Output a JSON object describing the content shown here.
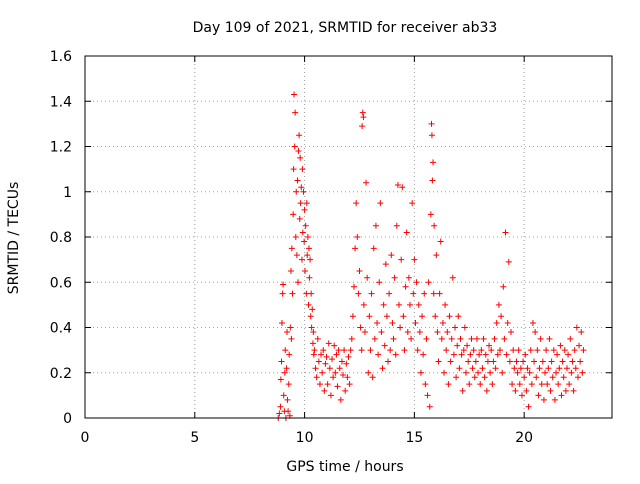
{
  "chart_data": {
    "type": "scatter",
    "title": "Day 109 of 2021, SRMTID for receiver ab33",
    "xlabel": "GPS time / hours",
    "ylabel": "SRMTID / TECUs",
    "xlim": [
      0,
      24
    ],
    "ylim": [
      0,
      1.6
    ],
    "xticks": [
      0,
      5,
      10,
      15,
      20
    ],
    "xtick_labels": [
      "0",
      "5",
      "10",
      "15",
      "20"
    ],
    "yticks": [
      0,
      0.2,
      0.4,
      0.6,
      0.8,
      1,
      1.2,
      1.4,
      1.6
    ],
    "ytick_labels": [
      "0",
      "0.2",
      "0.4",
      "0.6",
      "0.8",
      "1",
      "1.2",
      "1.4",
      "1.6"
    ],
    "grid": true,
    "marker": "+",
    "color": "#ff0000",
    "series": [
      {
        "name": "SRMTID",
        "points": [
          [
            8.8,
            0.0
          ],
          [
            8.85,
            0.02
          ],
          [
            8.9,
            0.05
          ],
          [
            8.92,
            0.17
          ],
          [
            8.95,
            0.25
          ],
          [
            8.97,
            0.42
          ],
          [
            9.0,
            0.55
          ],
          [
            9.02,
            0.59
          ],
          [
            9.05,
            0.1
          ],
          [
            9.08,
            0.03
          ],
          [
            9.1,
            0.2
          ],
          [
            9.12,
            0.3
          ],
          [
            9.15,
            0.0
          ],
          [
            9.18,
            0.22
          ],
          [
            9.2,
            0.38
          ],
          [
            9.22,
            0.08
          ],
          [
            9.25,
            0.03
          ],
          [
            9.28,
            0.15
          ],
          [
            9.3,
            0.28
          ],
          [
            9.33,
            0.01
          ],
          [
            9.35,
            0.4
          ],
          [
            9.38,
            0.65
          ],
          [
            9.4,
            0.35
          ],
          [
            9.42,
            0.75
          ],
          [
            9.45,
            0.55
          ],
          [
            9.48,
            0.9
          ],
          [
            9.5,
            1.1
          ],
          [
            9.52,
            1.43
          ],
          [
            9.55,
            1.2
          ],
          [
            9.57,
            1.35
          ],
          [
            9.6,
            0.8
          ],
          [
            9.62,
            1.0
          ],
          [
            9.65,
            0.72
          ],
          [
            9.68,
            1.05
          ],
          [
            9.7,
            0.6
          ],
          [
            9.72,
            1.18
          ],
          [
            9.75,
            1.25
          ],
          [
            9.78,
            0.88
          ],
          [
            9.8,
            1.15
          ],
          [
            9.82,
            0.95
          ],
          [
            9.85,
            1.02
          ],
          [
            9.88,
            0.7
          ],
          [
            9.9,
            1.1
          ],
          [
            9.92,
            0.82
          ],
          [
            9.95,
            1.0
          ],
          [
            9.98,
            0.78
          ],
          [
            10.0,
            0.92
          ],
          [
            10.02,
            0.65
          ],
          [
            10.05,
            0.85
          ],
          [
            10.08,
            0.55
          ],
          [
            10.1,
            0.95
          ],
          [
            10.12,
            0.72
          ],
          [
            10.15,
            0.8
          ],
          [
            10.18,
            0.5
          ],
          [
            10.2,
            0.75
          ],
          [
            10.22,
            0.62
          ],
          [
            10.25,
            0.7
          ],
          [
            10.28,
            0.45
          ],
          [
            10.3,
            0.55
          ],
          [
            10.32,
            0.4
          ],
          [
            10.35,
            0.48
          ],
          [
            10.38,
            0.33
          ],
          [
            10.4,
            0.38
          ],
          [
            10.42,
            0.28
          ],
          [
            10.45,
            0.3
          ],
          [
            10.5,
            0.22
          ],
          [
            10.55,
            0.18
          ],
          [
            10.6,
            0.35
          ],
          [
            10.65,
            0.25
          ],
          [
            10.7,
            0.15
          ],
          [
            10.75,
            0.28
          ],
          [
            10.8,
            0.2
          ],
          [
            10.85,
            0.3
          ],
          [
            10.9,
            0.12
          ],
          [
            10.95,
            0.24
          ],
          [
            11.0,
            0.27
          ],
          [
            11.05,
            0.15
          ],
          [
            11.1,
            0.33
          ],
          [
            11.15,
            0.22
          ],
          [
            11.2,
            0.1
          ],
          [
            11.25,
            0.26
          ],
          [
            11.3,
            0.18
          ],
          [
            11.35,
            0.32
          ],
          [
            11.4,
            0.2
          ],
          [
            11.45,
            0.28
          ],
          [
            11.5,
            0.14
          ],
          [
            11.55,
            0.3
          ],
          [
            11.6,
            0.22
          ],
          [
            11.65,
            0.08
          ],
          [
            11.7,
            0.25
          ],
          [
            11.75,
            0.19
          ],
          [
            11.8,
            0.3
          ],
          [
            11.85,
            0.12
          ],
          [
            11.9,
            0.24
          ],
          [
            11.95,
            0.18
          ],
          [
            12.0,
            0.27
          ],
          [
            12.05,
            0.15
          ],
          [
            12.1,
            0.3
          ],
          [
            12.15,
            0.35
          ],
          [
            12.2,
            0.45
          ],
          [
            12.25,
            0.58
          ],
          [
            12.3,
            0.75
          ],
          [
            12.35,
            0.95
          ],
          [
            12.4,
            0.8
          ],
          [
            12.45,
            0.55
          ],
          [
            12.5,
            0.65
          ],
          [
            12.55,
            0.4
          ],
          [
            12.6,
            0.3
          ],
          [
            12.62,
            1.29
          ],
          [
            12.65,
            1.35
          ],
          [
            12.68,
            1.33
          ],
          [
            12.7,
            0.5
          ],
          [
            12.75,
            0.38
          ],
          [
            12.8,
            1.04
          ],
          [
            12.85,
            0.62
          ],
          [
            12.9,
            0.2
          ],
          [
            12.95,
            0.45
          ],
          [
            13.0,
            0.3
          ],
          [
            13.05,
            0.55
          ],
          [
            13.1,
            0.18
          ],
          [
            13.15,
            0.75
          ],
          [
            13.2,
            0.35
          ],
          [
            13.25,
            0.85
          ],
          [
            13.3,
            0.42
          ],
          [
            13.35,
            0.28
          ],
          [
            13.4,
            0.6
          ],
          [
            13.45,
            0.95
          ],
          [
            13.5,
            0.38
          ],
          [
            13.55,
            0.22
          ],
          [
            13.6,
            0.5
          ],
          [
            13.65,
            0.32
          ],
          [
            13.7,
            0.68
          ],
          [
            13.75,
            0.45
          ],
          [
            13.8,
            0.25
          ],
          [
            13.85,
            0.55
          ],
          [
            13.9,
            0.3
          ],
          [
            13.95,
            0.72
          ],
          [
            14.0,
            0.42
          ],
          [
            14.05,
            0.35
          ],
          [
            14.1,
            0.62
          ],
          [
            14.15,
            0.28
          ],
          [
            14.2,
            0.85
          ],
          [
            14.25,
            1.03
          ],
          [
            14.3,
            0.5
          ],
          [
            14.35,
            0.4
          ],
          [
            14.4,
            0.7
          ],
          [
            14.45,
            1.02
          ],
          [
            14.5,
            0.45
          ],
          [
            14.55,
            0.3
          ],
          [
            14.6,
            0.58
          ],
          [
            14.65,
            0.82
          ],
          [
            14.7,
            0.38
          ],
          [
            14.75,
            0.62
          ],
          [
            14.8,
            0.5
          ],
          [
            14.85,
            0.35
          ],
          [
            14.9,
            0.95
          ],
          [
            14.95,
            0.55
          ],
          [
            15.0,
            0.7
          ],
          [
            15.05,
            0.42
          ],
          [
            15.1,
            0.6
          ],
          [
            15.15,
            0.3
          ],
          [
            15.2,
            0.5
          ],
          [
            15.25,
            0.38
          ],
          [
            15.3,
            0.2
          ],
          [
            15.35,
            0.45
          ],
          [
            15.4,
            0.28
          ],
          [
            15.45,
            0.55
          ],
          [
            15.5,
            0.15
          ],
          [
            15.55,
            0.35
          ],
          [
            15.6,
            0.1
          ],
          [
            15.65,
            0.6
          ],
          [
            15.7,
            0.05
          ],
          [
            15.75,
            0.9
          ],
          [
            15.78,
            1.3
          ],
          [
            15.8,
            1.25
          ],
          [
            15.82,
            1.05
          ],
          [
            15.85,
            1.13
          ],
          [
            15.88,
            0.55
          ],
          [
            15.9,
            0.85
          ],
          [
            15.95,
            0.45
          ],
          [
            16.0,
            0.72
          ],
          [
            16.05,
            0.38
          ],
          [
            16.1,
            0.25
          ],
          [
            16.15,
            0.55
          ],
          [
            16.2,
            0.78
          ],
          [
            16.25,
            0.35
          ],
          [
            16.3,
            0.42
          ],
          [
            16.35,
            0.2
          ],
          [
            16.4,
            0.5
          ],
          [
            16.45,
            0.3
          ],
          [
            16.5,
            0.38
          ],
          [
            16.55,
            0.15
          ],
          [
            16.6,
            0.45
          ],
          [
            16.65,
            0.25
          ],
          [
            16.7,
            0.35
          ],
          [
            16.75,
            0.62
          ],
          [
            16.8,
            0.28
          ],
          [
            16.85,
            0.4
          ],
          [
            16.9,
            0.18
          ],
          [
            16.95,
            0.32
          ],
          [
            17.0,
            0.45
          ],
          [
            17.05,
            0.22
          ],
          [
            17.1,
            0.35
          ],
          [
            17.15,
            0.28
          ],
          [
            17.2,
            0.12
          ],
          [
            17.25,
            0.3
          ],
          [
            17.3,
            0.4
          ],
          [
            17.35,
            0.2
          ],
          [
            17.4,
            0.32
          ],
          [
            17.45,
            0.25
          ],
          [
            17.5,
            0.15
          ],
          [
            17.55,
            0.28
          ],
          [
            17.6,
            0.35
          ],
          [
            17.65,
            0.22
          ],
          [
            17.7,
            0.3
          ],
          [
            17.75,
            0.18
          ],
          [
            17.8,
            0.25
          ],
          [
            17.85,
            0.35
          ],
          [
            17.9,
            0.2
          ],
          [
            17.95,
            0.28
          ],
          [
            18.0,
            0.15
          ],
          [
            18.05,
            0.3
          ],
          [
            18.1,
            0.22
          ],
          [
            18.15,
            0.35
          ],
          [
            18.2,
            0.18
          ],
          [
            18.25,
            0.28
          ],
          [
            18.3,
            0.12
          ],
          [
            18.35,
            0.25
          ],
          [
            18.4,
            0.32
          ],
          [
            18.45,
            0.2
          ],
          [
            18.5,
            0.3
          ],
          [
            18.55,
            0.15
          ],
          [
            18.6,
            0.25
          ],
          [
            18.65,
            0.35
          ],
          [
            18.7,
            0.22
          ],
          [
            18.75,
            0.42
          ],
          [
            18.8,
            0.28
          ],
          [
            18.85,
            0.5
          ],
          [
            18.9,
            0.3
          ],
          [
            18.95,
            0.45
          ],
          [
            19.0,
            0.2
          ],
          [
            19.05,
            0.58
          ],
          [
            19.1,
            0.35
          ],
          [
            19.15,
            0.82
          ],
          [
            19.2,
            0.28
          ],
          [
            19.25,
            0.42
          ],
          [
            19.3,
            0.69
          ],
          [
            19.35,
            0.25
          ],
          [
            19.4,
            0.38
          ],
          [
            19.45,
            0.15
          ],
          [
            19.5,
            0.3
          ],
          [
            19.55,
            0.22
          ],
          [
            19.6,
            0.12
          ],
          [
            19.65,
            0.25
          ],
          [
            19.7,
            0.2
          ],
          [
            19.75,
            0.3
          ],
          [
            19.8,
            0.15
          ],
          [
            19.85,
            0.22
          ],
          [
            19.9,
            0.1
          ],
          [
            19.95,
            0.25
          ],
          [
            20.0,
            0.18
          ],
          [
            20.05,
            0.28
          ],
          [
            20.1,
            0.12
          ],
          [
            20.15,
            0.22
          ],
          [
            20.2,
            0.05
          ],
          [
            20.25,
            0.2
          ],
          [
            20.3,
            0.3
          ],
          [
            20.35,
            0.15
          ],
          [
            20.4,
            0.42
          ],
          [
            20.45,
            0.25
          ],
          [
            20.5,
            0.38
          ],
          [
            20.55,
            0.18
          ],
          [
            20.6,
            0.3
          ],
          [
            20.65,
            0.1
          ],
          [
            20.7,
            0.22
          ],
          [
            20.75,
            0.35
          ],
          [
            20.8,
            0.15
          ],
          [
            20.85,
            0.25
          ],
          [
            20.9,
            0.08
          ],
          [
            20.95,
            0.2
          ],
          [
            21.0,
            0.3
          ],
          [
            21.05,
            0.15
          ],
          [
            21.1,
            0.22
          ],
          [
            21.15,
            0.35
          ],
          [
            21.2,
            0.12
          ],
          [
            21.25,
            0.25
          ],
          [
            21.3,
            0.18
          ],
          [
            21.35,
            0.3
          ],
          [
            21.4,
            0.08
          ],
          [
            21.45,
            0.2
          ],
          [
            21.5,
            0.28
          ],
          [
            21.55,
            0.15
          ],
          [
            21.6,
            0.22
          ],
          [
            21.65,
            0.32
          ],
          [
            21.7,
            0.1
          ],
          [
            21.75,
            0.25
          ],
          [
            21.8,
            0.18
          ],
          [
            21.85,
            0.3
          ],
          [
            21.9,
            0.12
          ],
          [
            21.95,
            0.22
          ],
          [
            22.0,
            0.28
          ],
          [
            22.05,
            0.15
          ],
          [
            22.1,
            0.35
          ],
          [
            22.15,
            0.2
          ],
          [
            22.2,
            0.25
          ],
          [
            22.25,
            0.12
          ],
          [
            22.3,
            0.3
          ],
          [
            22.35,
            0.22
          ],
          [
            22.4,
            0.4
          ],
          [
            22.45,
            0.18
          ],
          [
            22.5,
            0.32
          ],
          [
            22.55,
            0.25
          ],
          [
            22.6,
            0.38
          ],
          [
            22.65,
            0.2
          ],
          [
            22.7,
            0.3
          ]
        ]
      }
    ]
  }
}
